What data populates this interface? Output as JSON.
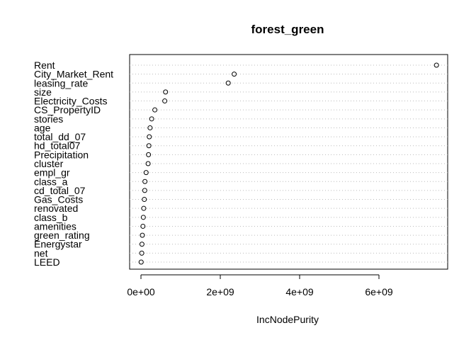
{
  "chart_data": {
    "type": "scatter",
    "style": "dotchart",
    "title": "forest_green",
    "xlabel": "IncNodePurity",
    "ylabel": "",
    "xlim": [
      0,
      7600000000
    ],
    "xticks": [
      {
        "value": 0,
        "label": "0e+00"
      },
      {
        "value": 2000000000,
        "label": "2e+09"
      },
      {
        "value": 4000000000,
        "label": "4e+09"
      },
      {
        "value": 6000000000,
        "label": "6e+09"
      }
    ],
    "grid": "dotted horizontal guide per variable",
    "categories": [
      "Rent",
      "City_Market_Rent",
      "leasing_rate",
      "size",
      "Electricity_Costs",
      "CS_PropertyID",
      "stories",
      "age",
      "total_dd_07",
      "hd_total07",
      "Precipitation",
      "cluster",
      "empl_gr",
      "class_a",
      "cd_total_07",
      "Gas_Costs",
      "renovated",
      "class_b",
      "amenities",
      "green_rating",
      "Energystar",
      "net",
      "LEED"
    ],
    "values": [
      7450000000,
      2350000000,
      2200000000,
      620000000,
      600000000,
      350000000,
      270000000,
      230000000,
      210000000,
      200000000,
      190000000,
      180000000,
      130000000,
      100000000,
      95000000,
      85000000,
      70000000,
      60000000,
      50000000,
      35000000,
      25000000,
      20000000,
      5000000
    ]
  }
}
